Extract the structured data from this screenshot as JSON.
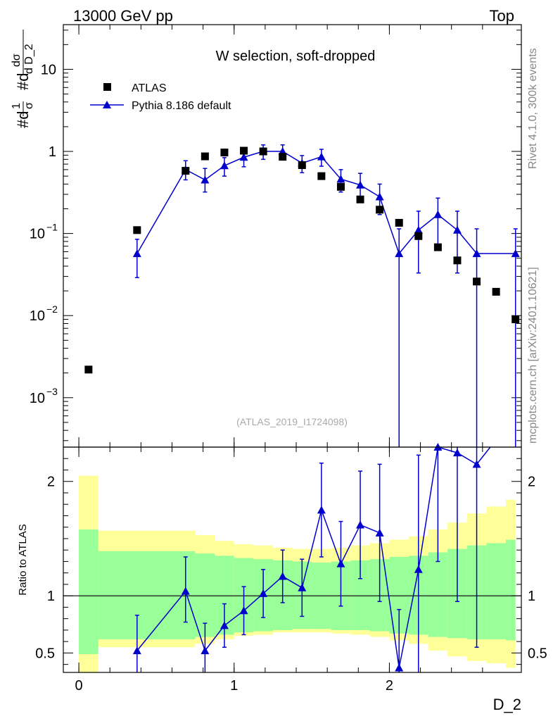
{
  "header": {
    "energy": "13000 GeV pp",
    "region": "Top"
  },
  "side_labels": {
    "rivet": "Rivet 4.1.0,  300k events",
    "url": "mcplots.cern.ch [arXiv:2401.10621]"
  },
  "analysis_id": "(ATLAS_2019_I1724098)",
  "chart_data": [
    {
      "type": "scatter",
      "title": "W selection, soft-dropped",
      "xlabel": "D_2",
      "ylabel": "#dσ/#dD_2 (1/σ)",
      "yscale": "log",
      "xlim": [
        -0.1,
        2.85
      ],
      "ylim": [
        0.00025,
        35
      ],
      "y_ticks": [
        {
          "value": 0.001,
          "base": "10",
          "exp": "−3"
        },
        {
          "value": 0.01,
          "base": "10",
          "exp": "−2"
        },
        {
          "value": 0.1,
          "base": "10",
          "exp": "−1"
        },
        {
          "value": 1,
          "base": "1",
          "exp": ""
        },
        {
          "value": 10,
          "base": "10",
          "exp": ""
        }
      ],
      "legend": {
        "position": "top-left",
        "entries": [
          {
            "label": "ATLAS",
            "marker": "square",
            "color": "#000000"
          },
          {
            "label": "Pythia 8.186 default",
            "marker": "triangle",
            "color": "#0000cc"
          }
        ]
      },
      "series": [
        {
          "name": "ATLAS",
          "color": "#000000",
          "x": [
            0.0625,
            0.375,
            0.6875,
            0.8125,
            0.9375,
            1.0625,
            1.1875,
            1.3125,
            1.4375,
            1.5625,
            1.6875,
            1.8125,
            1.9375,
            2.0625,
            2.1875,
            2.3125,
            2.4375,
            2.5625,
            2.6875,
            2.8125
          ],
          "y": [
            0.0022,
            0.11,
            0.58,
            0.87,
            0.97,
            1.02,
            1.0,
            0.86,
            0.68,
            0.5,
            0.37,
            0.26,
            0.195,
            0.135,
            0.093,
            0.068,
            0.047,
            0.026,
            0.0195,
            0.009
          ]
        },
        {
          "name": "Pythia 8.186 default",
          "color": "#0000cc",
          "x": [
            0.375,
            0.6875,
            0.8125,
            0.9375,
            1.0625,
            1.1875,
            1.3125,
            1.4375,
            1.5625,
            1.6875,
            1.8125,
            1.9375,
            2.0625,
            2.1875,
            2.3125,
            2.4375,
            2.5625,
            2.8125
          ],
          "y": [
            0.057,
            0.6,
            0.45,
            0.67,
            0.85,
            1.0,
            1.0,
            0.72,
            0.86,
            0.46,
            0.39,
            0.28,
            0.057,
            0.11,
            0.17,
            0.11,
            0.057,
            0.057
          ],
          "err_low": [
            0.028,
            0.15,
            0.13,
            0.17,
            0.2,
            0.2,
            0.2,
            0.17,
            0.2,
            0.14,
            0.13,
            0.11,
            0.057,
            0.077,
            0.1,
            0.077,
            0.057,
            0.057
          ],
          "err_high": [
            0.028,
            0.17,
            0.17,
            0.17,
            0.2,
            0.2,
            0.2,
            0.17,
            0.2,
            0.14,
            0.15,
            0.12,
            0.057,
            0.077,
            0.1,
            0.077,
            0.057,
            0.057
          ],
          "step_tail_from_x": 2.5625,
          "step_tail_to_x": 2.8125
        }
      ]
    },
    {
      "type": "line",
      "title": "",
      "xlabel": "D_2",
      "ylabel": "Ratio to ATLAS",
      "xlim": [
        -0.1,
        2.85
      ],
      "ylim": [
        0.33,
        2.3
      ],
      "y_ticks": [
        0.5,
        1,
        2
      ],
      "y_tick_labels": [
        "0.5",
        "1",
        "2"
      ],
      "x_ticks": [
        0,
        1,
        2
      ],
      "x_tick_labels": [
        "0",
        "1",
        "2"
      ],
      "reference_line": 1,
      "bands": {
        "edges": [
          0.0,
          0.125,
          0.625,
          0.75,
          0.875,
          1.0,
          1.125,
          1.25,
          1.375,
          1.5,
          1.625,
          1.75,
          1.875,
          2.0,
          2.125,
          2.25,
          2.375,
          2.5,
          2.625,
          2.75,
          2.8125
        ],
        "green_low": [
          0.49,
          0.62,
          0.62,
          0.64,
          0.66,
          0.68,
          0.69,
          0.7,
          0.71,
          0.71,
          0.7,
          0.7,
          0.69,
          0.67,
          0.66,
          0.64,
          0.63,
          0.62,
          0.62,
          0.61
        ],
        "green_high": [
          1.58,
          1.39,
          1.39,
          1.37,
          1.35,
          1.33,
          1.32,
          1.31,
          1.3,
          1.29,
          1.3,
          1.31,
          1.32,
          1.34,
          1.35,
          1.38,
          1.41,
          1.44,
          1.46,
          1.49
        ],
        "yellow_low": [
          0.33,
          0.55,
          0.55,
          0.58,
          0.62,
          0.65,
          0.66,
          0.68,
          0.68,
          0.68,
          0.67,
          0.66,
          0.64,
          0.61,
          0.58,
          0.52,
          0.47,
          0.43,
          0.41,
          0.37
        ],
        "yellow_high": [
          2.05,
          1.57,
          1.57,
          1.53,
          1.48,
          1.45,
          1.44,
          1.42,
          1.41,
          1.41,
          1.42,
          1.44,
          1.46,
          1.49,
          1.52,
          1.58,
          1.64,
          1.72,
          1.78,
          1.84
        ]
      },
      "series": [
        {
          "name": "Pythia 8.186 default / ATLAS",
          "color": "#0000cc",
          "x": [
            0.375,
            0.6875,
            0.8125,
            0.9375,
            1.0625,
            1.1875,
            1.3125,
            1.4375,
            1.5625,
            1.6875,
            1.8125,
            1.9375,
            2.0625,
            2.1875,
            2.3125,
            2.4375,
            2.5625
          ],
          "y": [
            0.52,
            1.04,
            0.52,
            0.74,
            0.87,
            1.02,
            1.17,
            1.07,
            1.75,
            1.28,
            1.62,
            1.55,
            0.37,
            1.23,
            2.3,
            2.25,
            2.15
          ],
          "err_low": [
            0.25,
            0.27,
            0.24,
            0.19,
            0.21,
            0.21,
            0.23,
            0.25,
            0.41,
            0.37,
            0.47,
            0.6,
            0.37,
            1.0,
            1.0,
            1.3,
            1.6
          ],
          "err_high": [
            0.31,
            0.3,
            0.24,
            0.19,
            0.21,
            0.21,
            0.23,
            0.25,
            0.41,
            0.37,
            0.47,
            0.6,
            0.51,
            1.0,
            1.0,
            1.3,
            1.6
          ]
        }
      ]
    }
  ]
}
